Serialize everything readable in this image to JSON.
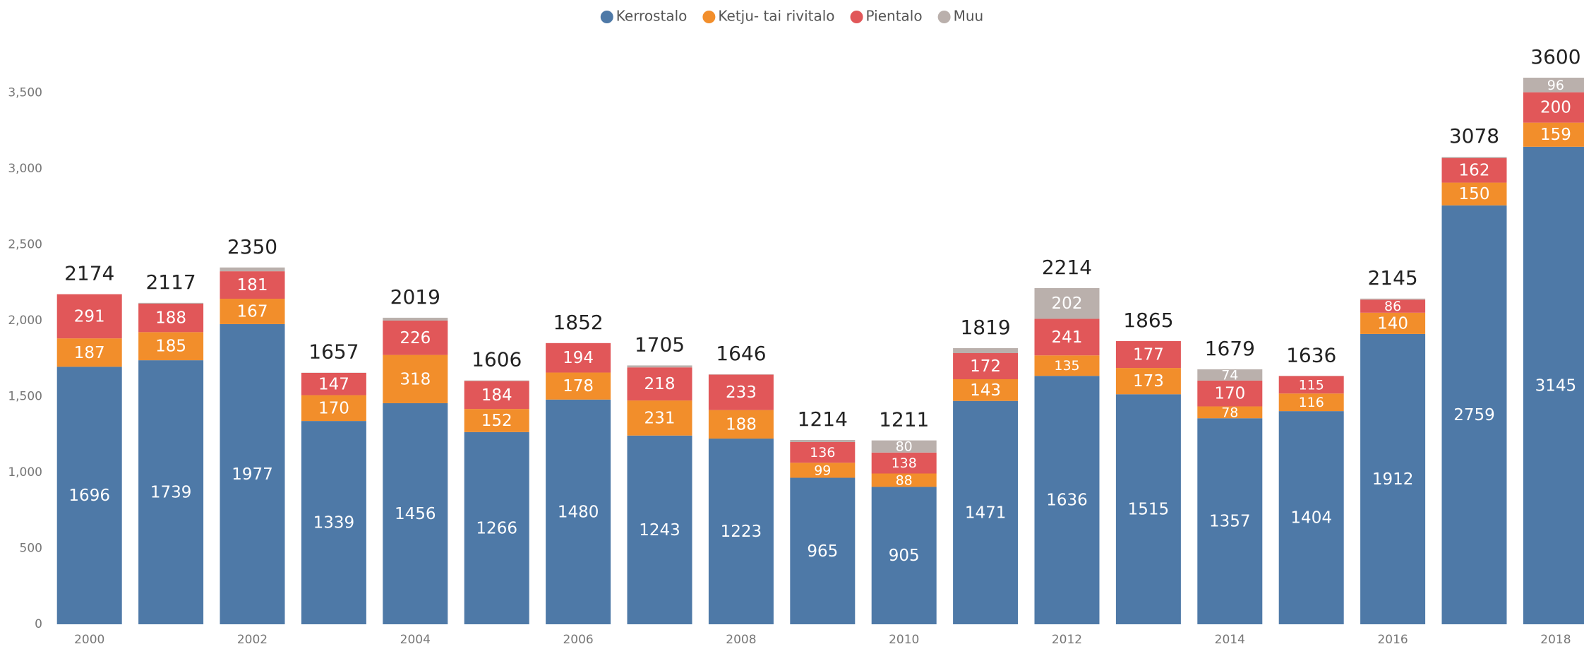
{
  "chart_data": {
    "type": "stacked_bar",
    "categories": [
      "2000",
      null,
      "2002",
      null,
      "2004",
      null,
      "2006",
      null,
      "2008",
      null,
      "2010",
      null,
      "2012",
      null,
      "2014",
      null,
      "2016",
      null,
      "2018"
    ],
    "series": [
      {
        "name": "Kerrostalo",
        "color": "#4e79a7",
        "values": [
          1696,
          1739,
          1977,
          1339,
          1456,
          1266,
          1480,
          1243,
          1223,
          965,
          905,
          1471,
          1636,
          1515,
          1357,
          1404,
          1912,
          2759,
          3145
        ]
      },
      {
        "name": "Ketju- tai rivitalo",
        "color": "#f28e2b",
        "values": [
          187,
          185,
          167,
          170,
          318,
          152,
          178,
          231,
          188,
          99,
          88,
          143,
          135,
          173,
          78,
          116,
          140,
          150,
          159
        ]
      },
      {
        "name": "Pientalo",
        "color": "#e15759",
        "values": [
          291,
          188,
          181,
          147,
          226,
          184,
          194,
          218,
          233,
          136,
          138,
          172,
          241,
          177,
          170,
          115,
          86,
          162,
          200
        ]
      },
      {
        "name": "Muu",
        "color": "#bab0ac",
        "values": [
          0,
          5,
          25,
          1,
          19,
          4,
          0,
          13,
          2,
          14,
          80,
          33,
          202,
          0,
          74,
          1,
          7,
          7,
          96
        ]
      }
    ],
    "totals": [
      2174,
      2117,
      2350,
      1657,
      2019,
      1606,
      1852,
      1705,
      1646,
      1214,
      1211,
      1819,
      2214,
      1865,
      1679,
      1636,
      2145,
      3078,
      3600
    ],
    "ylim": [
      0,
      3600
    ],
    "yticks": [
      0,
      500,
      {
        "value": 1000,
        "label": "1,000"
      },
      {
        "value": 1500,
        "label": "1,500"
      },
      {
        "value": 2000,
        "label": "2,000"
      },
      {
        "value": 2500,
        "label": "2,500"
      },
      {
        "value": 3000,
        "label": "3,000"
      },
      {
        "value": 3500,
        "label": "3,500"
      }
    ],
    "grid": false,
    "legend": "top"
  }
}
